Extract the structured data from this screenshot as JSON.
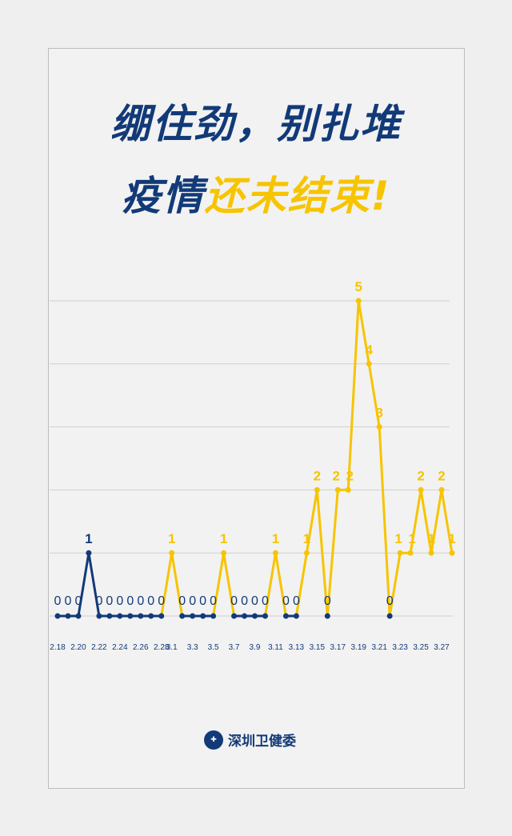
{
  "title": {
    "line1": "绷住劲，别扎堆",
    "line2_a": "疫情",
    "line2_b": "还未结束!"
  },
  "footer": {
    "org": "深圳卫健委"
  },
  "colors": {
    "navy": "#123a78",
    "yellow": "#f7c400",
    "grid": "#cfcfcf"
  },
  "chart_data": {
    "type": "line",
    "ylim": [
      0,
      5
    ],
    "grid": true,
    "x": [
      "2.18",
      "2.19",
      "2.20",
      "2.21",
      "2.22",
      "2.23",
      "2.24",
      "2.25",
      "2.26",
      "2.27",
      "2.28",
      "3.1",
      "3.2",
      "3.3",
      "3.4",
      "3.5",
      "3.6",
      "3.7",
      "3.8",
      "3.9",
      "3.10",
      "3.11",
      "3.12",
      "3.13",
      "3.14",
      "3.15",
      "3.16",
      "3.17",
      "3.18",
      "3.19",
      "3.20",
      "3.21",
      "3.22",
      "3.23",
      "3.24",
      "3.25",
      "3.26",
      "3.27",
      "3.28"
    ],
    "values": [
      0,
      0,
      0,
      1,
      0,
      0,
      0,
      0,
      0,
      0,
      0,
      1,
      0,
      0,
      0,
      0,
      1,
      0,
      0,
      0,
      0,
      1,
      0,
      0,
      1,
      2,
      0,
      2,
      2,
      5,
      4,
      3,
      0,
      1,
      1,
      2,
      1,
      2,
      1
    ],
    "tick_labels": [
      "2.18",
      "2.20",
      "2.22",
      "2.24",
      "2.26",
      "2.28",
      "3.1",
      "3.3",
      "3.5",
      "3.7",
      "3.9",
      "3.11",
      "3.13",
      "3.15",
      "3.17",
      "3.19",
      "3.21",
      "3.23",
      "3.25",
      "3.27"
    ]
  }
}
